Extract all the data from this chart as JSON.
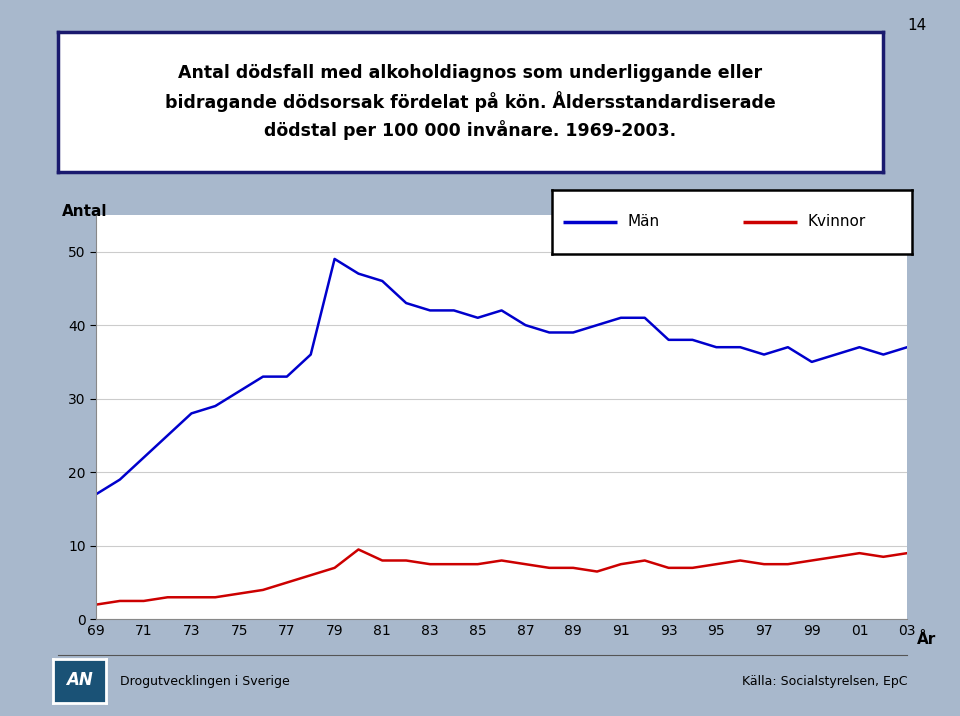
{
  "years": [
    1969,
    1970,
    1971,
    1972,
    1973,
    1974,
    1975,
    1976,
    1977,
    1978,
    1979,
    1980,
    1981,
    1982,
    1983,
    1984,
    1985,
    1986,
    1987,
    1988,
    1989,
    1990,
    1991,
    1992,
    1993,
    1994,
    1995,
    1996,
    1997,
    1998,
    1999,
    2000,
    2001,
    2002,
    2003
  ],
  "man": [
    17,
    19,
    22,
    25,
    28,
    29,
    31,
    33,
    33,
    36,
    49,
    47,
    46,
    43,
    42,
    42,
    41,
    42,
    40,
    39,
    39,
    40,
    41,
    41,
    38,
    38,
    37,
    37,
    36,
    37,
    35,
    36,
    37,
    36,
    37
  ],
  "kvinnor": [
    2,
    2.5,
    2.5,
    3,
    3,
    3,
    3.5,
    4,
    5,
    6,
    7,
    9.5,
    8,
    8,
    7.5,
    7.5,
    7.5,
    8,
    7.5,
    7,
    7,
    6.5,
    7.5,
    8,
    7,
    7,
    7.5,
    8,
    7.5,
    7.5,
    8,
    8.5,
    9,
    8.5,
    9
  ],
  "man_color": "#0000CC",
  "kvinnor_color": "#CC0000",
  "background_color": "#A8B8CC",
  "plot_bg_color": "#FFFFFF",
  "title_line1": "Antal dödsfall med alkoholdiagnos som underliggande eller",
  "title_line2": "bidragande dödsorsak fördelat på kön. Åldersstandardiserade",
  "title_line3": "dödstal per 100 000 invånare. 1969-2003.",
  "ylabel": "Antal",
  "xlabel": "År",
  "ylim": [
    0,
    55
  ],
  "yticks": [
    0,
    10,
    20,
    30,
    40,
    50
  ],
  "xtick_labels": [
    "69",
    "71",
    "73",
    "75",
    "77",
    "79",
    "81",
    "83",
    "85",
    "87",
    "89",
    "91",
    "93",
    "95",
    "97",
    "99",
    "01",
    "03"
  ],
  "page_number": "14",
  "footer_left": "Drogutvecklingen i Sverige",
  "footer_right": "Källa: Socialstyrelsen, EpC",
  "legend_man": "Män",
  "legend_kvinnor": "Kvinnor",
  "title_box_border_color": "#1a1a6e",
  "logo_bg": "#1a5276",
  "logo_border": "#FFFFFF"
}
